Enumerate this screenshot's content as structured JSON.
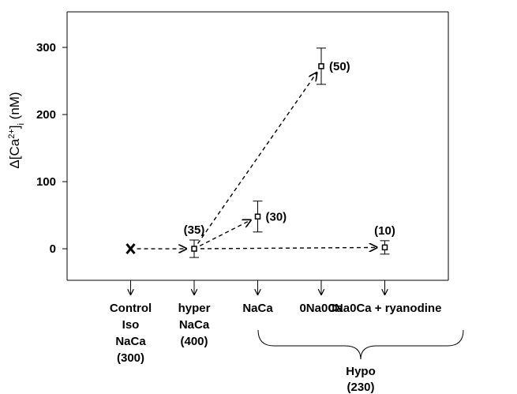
{
  "chart_data": {
    "type": "scatter",
    "y_label": [
      "Δ[Ca",
      "2+",
      "]",
      "i",
      " (nM)"
    ],
    "categories": [
      [
        "Control",
        "Iso",
        "NaCa",
        "(300)"
      ],
      [
        "hyper",
        "NaCa",
        "(400)"
      ],
      [
        "NaCa"
      ],
      [
        "0Na0Ca"
      ],
      [
        "0Na0Ca + ryanodine"
      ]
    ],
    "values": [
      0,
      0,
      48,
      272,
      2
    ],
    "errors": [
      null,
      13,
      23,
      27,
      10
    ],
    "n_labels": [
      null,
      "(35)",
      "(30)",
      "(50)",
      "(10)"
    ],
    "group_label": [
      "Hypo",
      "(230)"
    ],
    "ylim": [
      -47,
      353
    ],
    "yticks": [
      0,
      100,
      200,
      300
    ]
  }
}
